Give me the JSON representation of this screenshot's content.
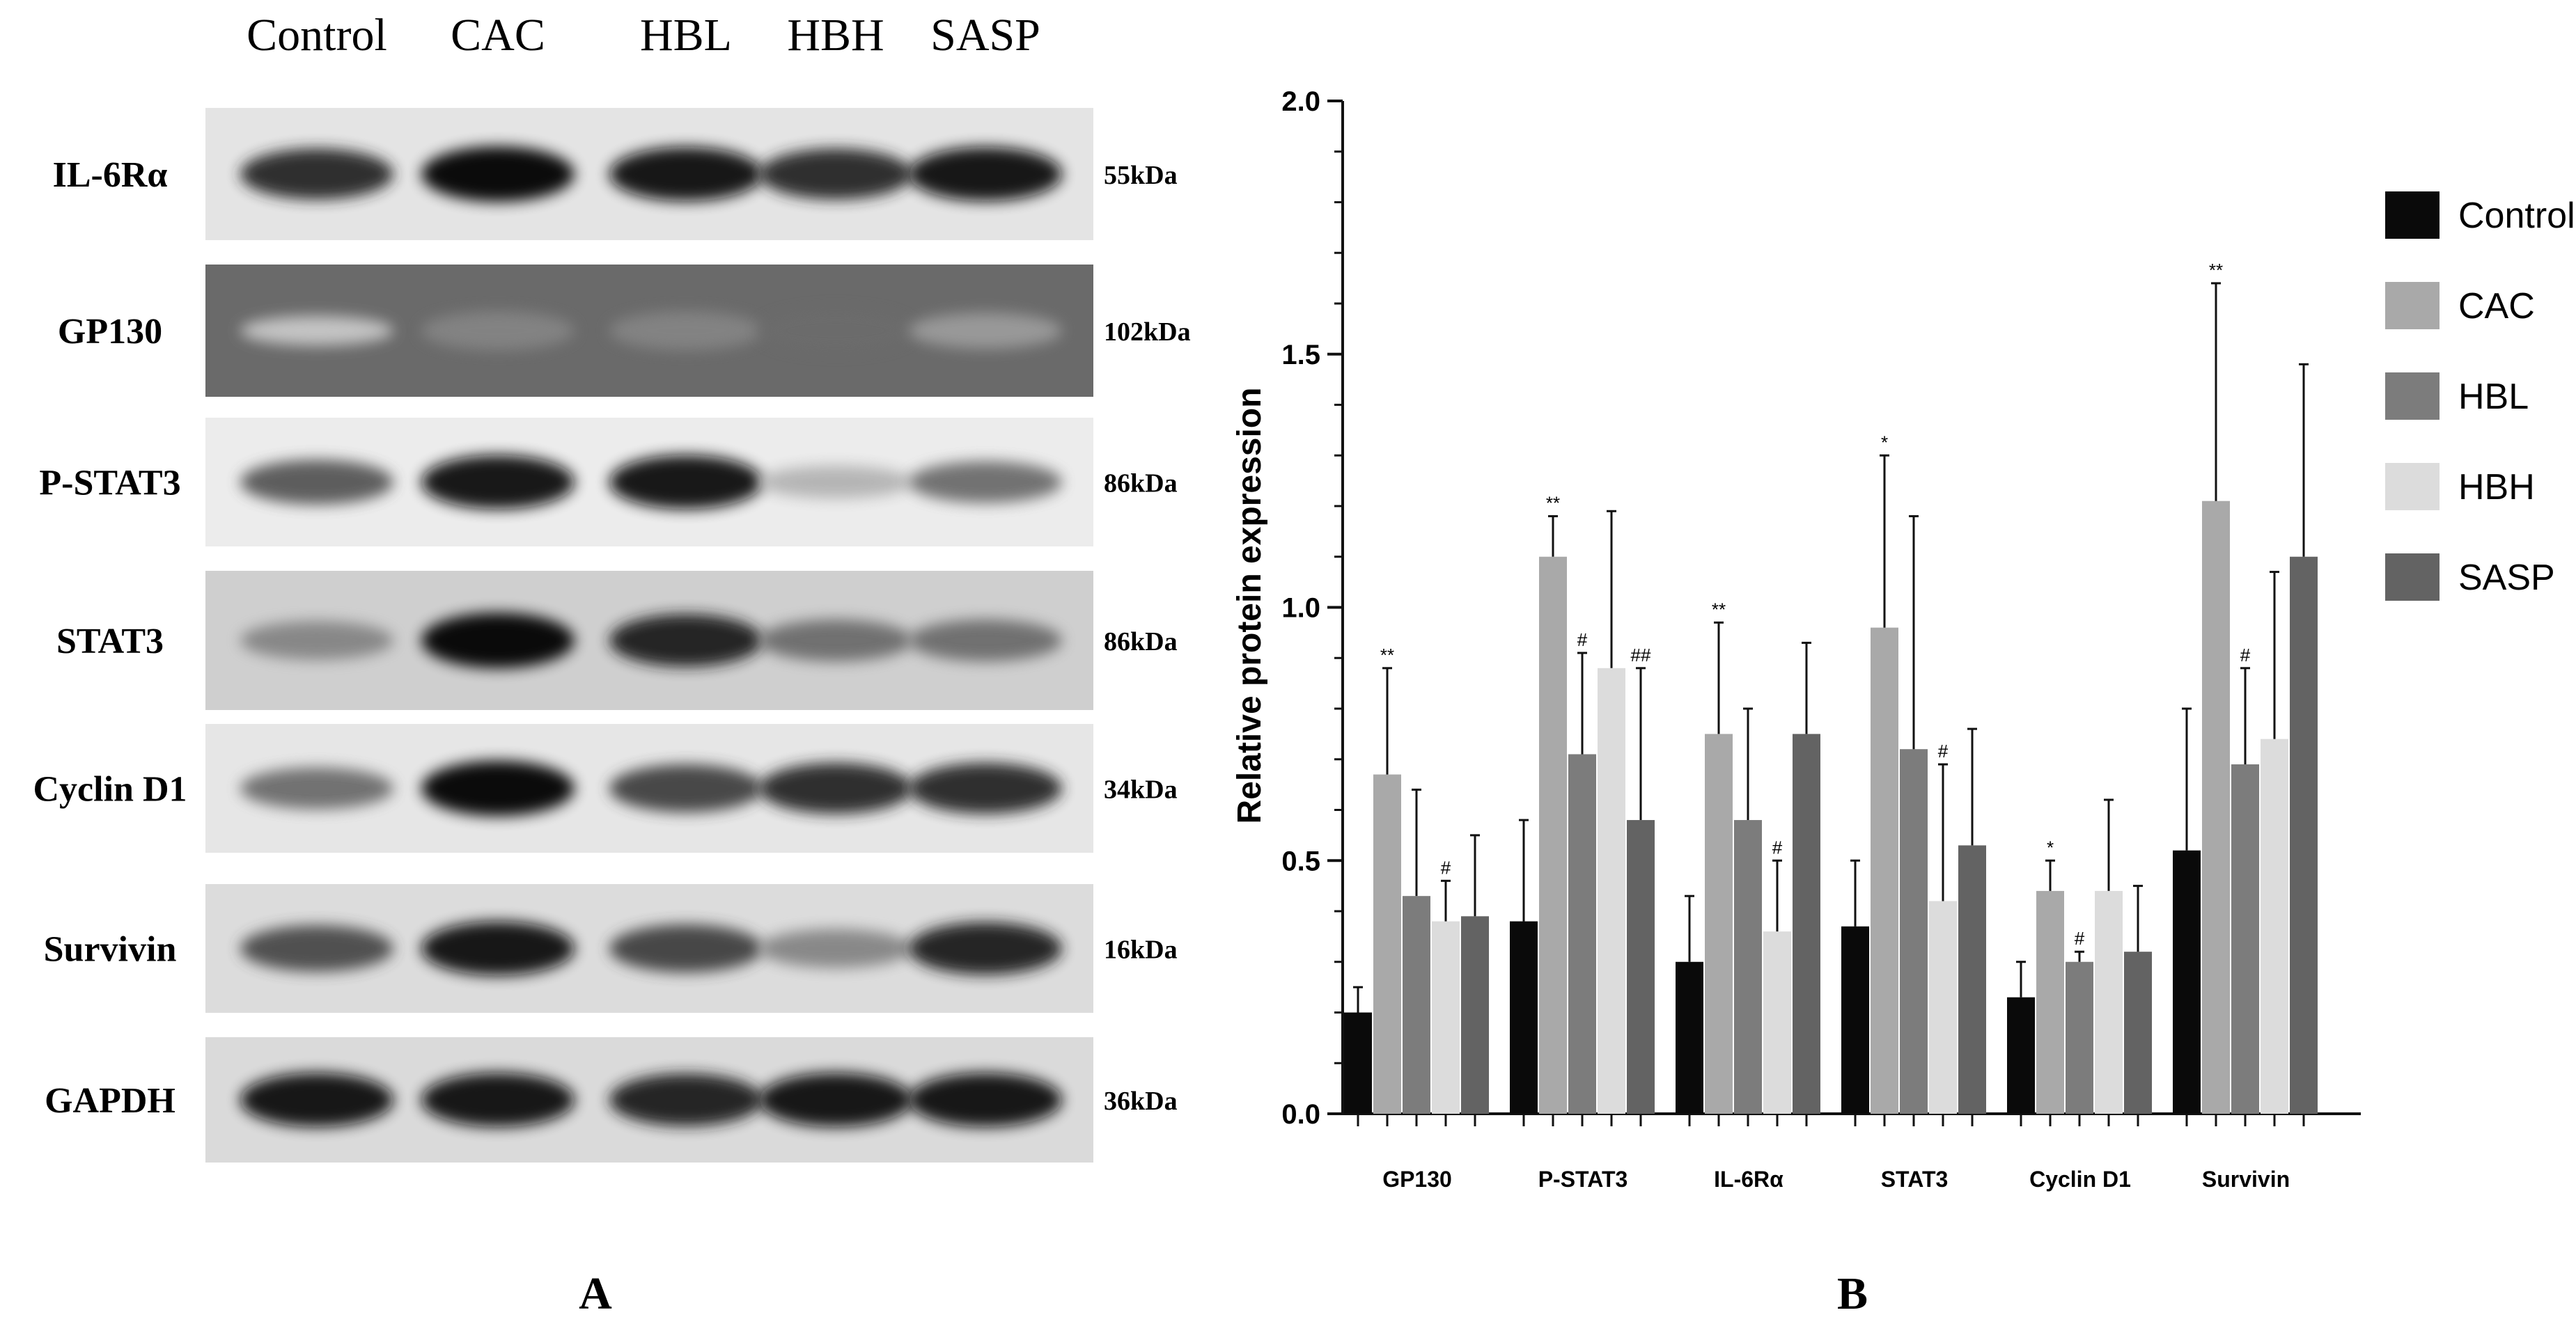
{
  "panel_a": {
    "letter": "A",
    "lanes": [
      "Control",
      "CAC",
      "HBL",
      "HBH",
      "SASP"
    ],
    "rows": [
      {
        "label": "IL-6Rα",
        "kda": "55kDa"
      },
      {
        "label": "GP130",
        "kda": "102kDa"
      },
      {
        "label": "P-STAT3",
        "kda": "86kDa"
      },
      {
        "label": "STAT3",
        "kda": "86kDa"
      },
      {
        "label": "Cyclin D1",
        "kda": "34kDa"
      },
      {
        "label": "Survivin",
        "kda": "16kDa"
      },
      {
        "label": "GAPDH",
        "kda": "36kDa"
      }
    ]
  },
  "panel_b": {
    "letter": "B"
  },
  "colors": {
    "Control": "#0a0a0a",
    "CAC": "#a9a9a9",
    "HBL": "#7c7c7c",
    "HBH": "#dcdcdc",
    "SASP": "#636363"
  },
  "chart_data": {
    "type": "bar",
    "ylabel": "Relative protein expression",
    "xlabel": "",
    "ylim": [
      0,
      2.0
    ],
    "yticks": [
      "0.0",
      "0.5",
      "1.0",
      "1.5",
      "2.0"
    ],
    "legend_position": "right",
    "categories": [
      "GP130",
      "P-STAT3",
      "IL-6Rα",
      "STAT3",
      "Cyclin D1",
      "Survivin"
    ],
    "series": [
      {
        "name": "Control",
        "values": [
          0.2,
          0.38,
          0.3,
          0.37,
          0.23,
          0.52
        ],
        "errors": [
          0.05,
          0.2,
          0.13,
          0.13,
          0.07,
          0.28
        ],
        "marks": [
          "",
          "",
          "",
          "",
          "",
          ""
        ]
      },
      {
        "name": "CAC",
        "values": [
          0.67,
          1.1,
          0.75,
          0.96,
          0.44,
          1.21
        ],
        "errors": [
          0.21,
          0.08,
          0.22,
          0.34,
          0.06,
          0.43
        ],
        "marks": [
          "**",
          "**",
          "**",
          "*",
          "*",
          "**"
        ]
      },
      {
        "name": "HBL",
        "values": [
          0.43,
          0.71,
          0.58,
          0.72,
          0.3,
          0.69
        ],
        "errors": [
          0.21,
          0.2,
          0.22,
          0.46,
          0.02,
          0.19
        ],
        "marks": [
          "",
          "#",
          "",
          "",
          "#",
          "#"
        ]
      },
      {
        "name": "HBH",
        "values": [
          0.38,
          0.88,
          0.36,
          0.42,
          0.44,
          0.74
        ],
        "errors": [
          0.08,
          0.31,
          0.14,
          0.27,
          0.18,
          0.33
        ],
        "marks": [
          "#",
          "",
          "#",
          "#",
          "",
          ""
        ]
      },
      {
        "name": "SASP",
        "values": [
          0.39,
          0.58,
          0.75,
          0.53,
          0.32,
          1.1
        ],
        "errors": [
          0.16,
          0.3,
          0.18,
          0.23,
          0.13,
          0.38
        ],
        "marks": [
          "",
          "##",
          "",
          "",
          "",
          ""
        ]
      }
    ]
  }
}
